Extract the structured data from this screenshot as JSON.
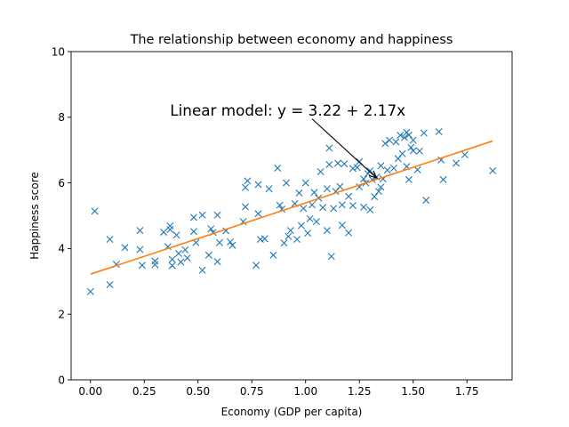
{
  "chart_data": {
    "type": "scatter",
    "title": "The relationship between economy and happiness",
    "xlabel": "Economy (GDP per capita)",
    "ylabel": "Happiness score",
    "xlim": [
      -0.09,
      1.96
    ],
    "ylim": [
      0,
      10
    ],
    "xticks": [
      0.0,
      0.25,
      0.5,
      0.75,
      1.0,
      1.25,
      1.5,
      1.75
    ],
    "xtick_labels": [
      "0.00",
      "0.25",
      "0.50",
      "0.75",
      "1.00",
      "1.25",
      "1.50",
      "1.75"
    ],
    "yticks": [
      0,
      2,
      4,
      6,
      8,
      10
    ],
    "ytick_labels": [
      "0",
      "2",
      "4",
      "6",
      "8",
      "10"
    ],
    "grid": false,
    "series": [
      {
        "marker": "x",
        "color": "#1f77b4",
        "points": [
          [
            0.0,
            2.69
          ],
          [
            0.02,
            5.14
          ],
          [
            0.09,
            4.28
          ],
          [
            0.09,
            2.9
          ],
          [
            0.12,
            3.52
          ],
          [
            0.16,
            4.03
          ],
          [
            0.23,
            4.55
          ],
          [
            0.23,
            3.97
          ],
          [
            0.24,
            3.49
          ],
          [
            0.3,
            3.62
          ],
          [
            0.3,
            3.51
          ],
          [
            0.34,
            4.5
          ],
          [
            0.36,
            4.06
          ],
          [
            0.37,
            4.69
          ],
          [
            0.37,
            4.58
          ],
          [
            0.38,
            3.48
          ],
          [
            0.38,
            3.67
          ],
          [
            0.4,
            4.41
          ],
          [
            0.41,
            3.85
          ],
          [
            0.42,
            3.59
          ],
          [
            0.44,
            3.96
          ],
          [
            0.45,
            3.71
          ],
          [
            0.48,
            4.95
          ],
          [
            0.48,
            4.52
          ],
          [
            0.49,
            4.18
          ],
          [
            0.52,
            5.02
          ],
          [
            0.52,
            3.34
          ],
          [
            0.55,
            3.8
          ],
          [
            0.56,
            4.6
          ],
          [
            0.57,
            4.49
          ],
          [
            0.59,
            3.6
          ],
          [
            0.59,
            5.02
          ],
          [
            0.6,
            4.18
          ],
          [
            0.63,
            4.54
          ],
          [
            0.65,
            4.2
          ],
          [
            0.66,
            4.1
          ],
          [
            0.71,
            4.82
          ],
          [
            0.72,
            5.27
          ],
          [
            0.72,
            5.86
          ],
          [
            0.73,
            6.06
          ],
          [
            0.77,
            3.49
          ],
          [
            0.78,
            5.06
          ],
          [
            0.79,
            4.28
          ],
          [
            0.78,
            5.95
          ],
          [
            0.81,
            4.3
          ],
          [
            0.83,
            5.82
          ],
          [
            0.85,
            3.8
          ],
          [
            0.87,
            6.45
          ],
          [
            0.88,
            5.32
          ],
          [
            0.89,
            5.2
          ],
          [
            0.9,
            4.17
          ],
          [
            0.91,
            6.0
          ],
          [
            0.92,
            4.37
          ],
          [
            0.93,
            4.55
          ],
          [
            0.95,
            5.37
          ],
          [
            0.96,
            4.28
          ],
          [
            0.97,
            5.69
          ],
          [
            0.98,
            4.7
          ],
          [
            0.99,
            5.22
          ],
          [
            1.0,
            6.0
          ],
          [
            1.01,
            4.47
          ],
          [
            1.02,
            4.91
          ],
          [
            1.03,
            5.33
          ],
          [
            1.04,
            5.71
          ],
          [
            1.05,
            4.82
          ],
          [
            1.06,
            5.54
          ],
          [
            1.07,
            6.34
          ],
          [
            1.08,
            5.25
          ],
          [
            1.1,
            4.55
          ],
          [
            1.1,
            5.82
          ],
          [
            1.11,
            6.56
          ],
          [
            1.11,
            7.06
          ],
          [
            1.12,
            3.76
          ],
          [
            1.13,
            5.22
          ],
          [
            1.14,
            5.74
          ],
          [
            1.15,
            6.6
          ],
          [
            1.16,
            5.89
          ],
          [
            1.17,
            4.71
          ],
          [
            1.17,
            5.33
          ],
          [
            1.18,
            6.58
          ],
          [
            1.2,
            5.59
          ],
          [
            1.2,
            4.48
          ],
          [
            1.22,
            6.44
          ],
          [
            1.22,
            5.31
          ],
          [
            1.24,
            6.47
          ],
          [
            1.25,
            6.65
          ],
          [
            1.25,
            5.88
          ],
          [
            1.27,
            6.12
          ],
          [
            1.27,
            5.26
          ],
          [
            1.28,
            6.0
          ],
          [
            1.29,
            6.28
          ],
          [
            1.3,
            5.18
          ],
          [
            1.3,
            6.37
          ],
          [
            1.31,
            6.1
          ],
          [
            1.32,
            5.58
          ],
          [
            1.33,
            6.18
          ],
          [
            1.34,
            5.74
          ],
          [
            1.35,
            5.87
          ],
          [
            1.35,
            6.52
          ],
          [
            1.36,
            6.12
          ],
          [
            1.37,
            7.2
          ],
          [
            1.38,
            6.39
          ],
          [
            1.39,
            7.3
          ],
          [
            1.41,
            6.45
          ],
          [
            1.42,
            7.25
          ],
          [
            1.43,
            6.74
          ],
          [
            1.44,
            7.45
          ],
          [
            1.45,
            6.89
          ],
          [
            1.46,
            7.38
          ],
          [
            1.47,
            6.5
          ],
          [
            1.47,
            7.54
          ],
          [
            1.48,
            7.46
          ],
          [
            1.48,
            6.1
          ],
          [
            1.49,
            7.08
          ],
          [
            1.5,
            7.3
          ],
          [
            1.5,
            6.98
          ],
          [
            1.52,
            6.4
          ],
          [
            1.53,
            6.97
          ],
          [
            1.55,
            7.52
          ],
          [
            1.56,
            5.47
          ],
          [
            1.62,
            7.56
          ],
          [
            1.63,
            6.7
          ],
          [
            1.64,
            6.1
          ],
          [
            1.7,
            6.6
          ],
          [
            1.74,
            6.86
          ],
          [
            1.87,
            6.37
          ]
        ]
      }
    ],
    "fit_line": {
      "color": "#ff7f0e",
      "intercept": 3.22,
      "slope": 2.17,
      "x_range": [
        0.0,
        1.87
      ]
    },
    "annotation": {
      "text": "Linear model: y = 3.22 + 2.17x",
      "text_at": [
        0.37,
        8.05
      ],
      "arrow_from": [
        1.03,
        7.95
      ],
      "arrow_to": [
        1.33,
        6.15
      ]
    }
  }
}
